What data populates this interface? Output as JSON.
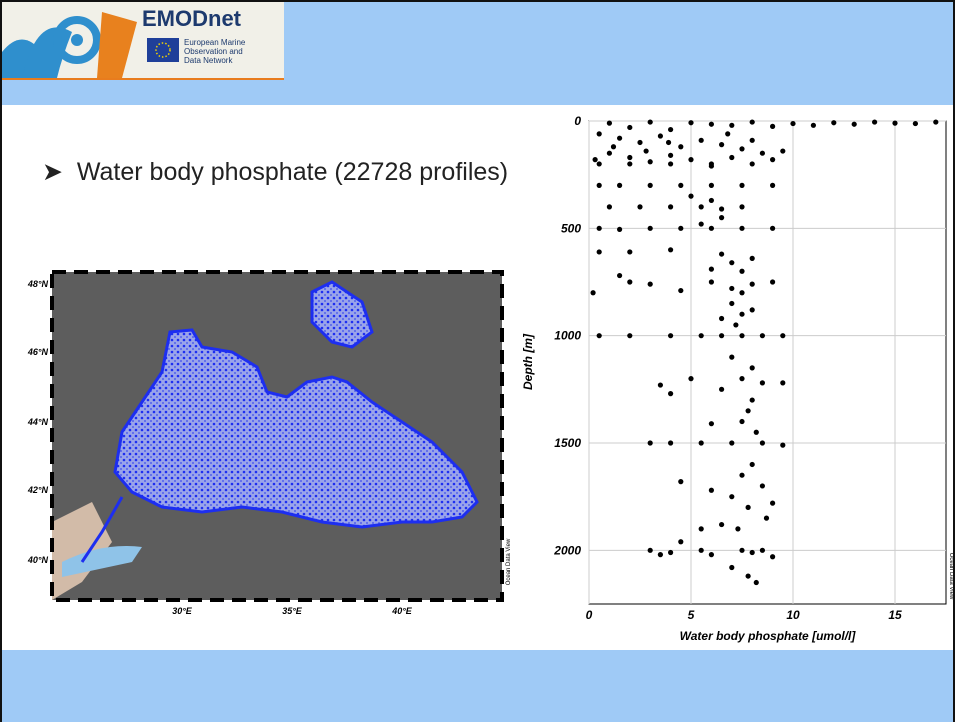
{
  "header": {
    "logo_title": "EMODnet",
    "logo_subtitle": [
      "European Marine",
      "Observation and",
      "Data Network"
    ]
  },
  "bullet": "Water body phosphate (22728 profiles)",
  "map": {
    "lat_labels": [
      "48°N",
      "46°N",
      "44°N",
      "42°N",
      "40°N"
    ],
    "lon_labels": [
      "30°E",
      "35°E",
      "40°E"
    ],
    "credit": "Ocean Data View"
  },
  "chart_data": {
    "type": "scatter",
    "xlabel": "Water body phosphate [umol/l]",
    "ylabel": "Depth [m]",
    "credit": "Ocean Data View",
    "xlim": [
      0,
      17.5
    ],
    "ylim": [
      2250,
      0
    ],
    "xticks": [
      0,
      5,
      10,
      15
    ],
    "yticks": [
      0,
      500,
      1000,
      1500,
      2000
    ],
    "grid": true,
    "color": "#000000",
    "x": [
      1,
      3,
      5,
      8,
      10,
      12,
      15,
      17,
      13,
      7,
      2,
      4,
      6,
      9,
      11,
      14,
      16,
      0.5,
      1.5,
      2.5,
      3.5,
      4.5,
      5.5,
      6.5,
      7.5,
      8.5,
      1,
      2,
      3,
      4,
      5,
      6,
      7,
      9.5,
      0.3,
      1.2,
      2.8,
      3.9,
      6.8,
      8,
      9,
      0.5,
      2,
      4,
      6,
      8,
      0.5,
      1.5,
      3,
      4.5,
      6,
      7.5,
      9,
      1,
      2.5,
      4,
      5.5,
      6.5,
      7.5,
      5,
      6,
      6.5,
      5.5,
      0.5,
      1.5,
      3,
      4.5,
      6,
      7.5,
      9,
      0.5,
      2,
      4,
      6.5,
      7,
      7.5,
      6,
      8,
      1.5,
      0.2,
      2,
      3,
      4.5,
      6,
      7,
      8,
      9,
      7.5,
      7,
      7.5,
      6.5,
      8,
      7.2,
      0.5,
      2,
      4,
      5.5,
      6.5,
      7.5,
      8.5,
      9.5,
      7,
      8,
      7.5,
      8.5,
      9.5,
      3.5,
      4,
      6.5,
      8,
      5,
      7.8,
      7.5,
      8.2,
      3,
      4,
      5.5,
      7,
      8.5,
      9.5,
      6,
      8,
      7.5,
      8.5,
      7,
      9,
      4.5,
      6,
      7.8,
      8.7,
      7.3,
      5.5,
      6.5,
      3,
      3.5,
      4,
      5.5,
      6,
      7.5,
      8,
      8.5,
      9,
      7,
      7.8,
      8.2,
      4.5
    ],
    "y": [
      10,
      5,
      8,
      5,
      12,
      8,
      10,
      5,
      15,
      20,
      30,
      40,
      15,
      25,
      20,
      5,
      12,
      60,
      80,
      100,
      70,
      120,
      90,
      110,
      130,
      150,
      150,
      170,
      190,
      160,
      180,
      200,
      170,
      140,
      180,
      120,
      140,
      100,
      60,
      90,
      180,
      200,
      200,
      200,
      210,
      200,
      300,
      300,
      300,
      300,
      300,
      300,
      300,
      400,
      400,
      400,
      400,
      410,
      400,
      350,
      370,
      450,
      480,
      500,
      505,
      500,
      500,
      500,
      500,
      500,
      610,
      610,
      600,
      620,
      660,
      700,
      690,
      640,
      720,
      800,
      750,
      760,
      790,
      750,
      780,
      760,
      750,
      800,
      850,
      900,
      920,
      880,
      950,
      1000,
      1000,
      1000,
      1000,
      1000,
      1000,
      1000,
      1000,
      1100,
      1150,
      1200,
      1220,
      1220,
      1230,
      1270,
      1250,
      1300,
      1200,
      1350,
      1400,
      1450,
      1500,
      1500,
      1500,
      1500,
      1500,
      1510,
      1410,
      1600,
      1650,
      1700,
      1750,
      1780,
      1680,
      1720,
      1800,
      1850,
      1900,
      1900,
      1880,
      2000,
      2020,
      2010,
      2000,
      2020,
      2000,
      2010,
      2000,
      2030,
      2080,
      2120,
      2150,
      1960
    ]
  }
}
